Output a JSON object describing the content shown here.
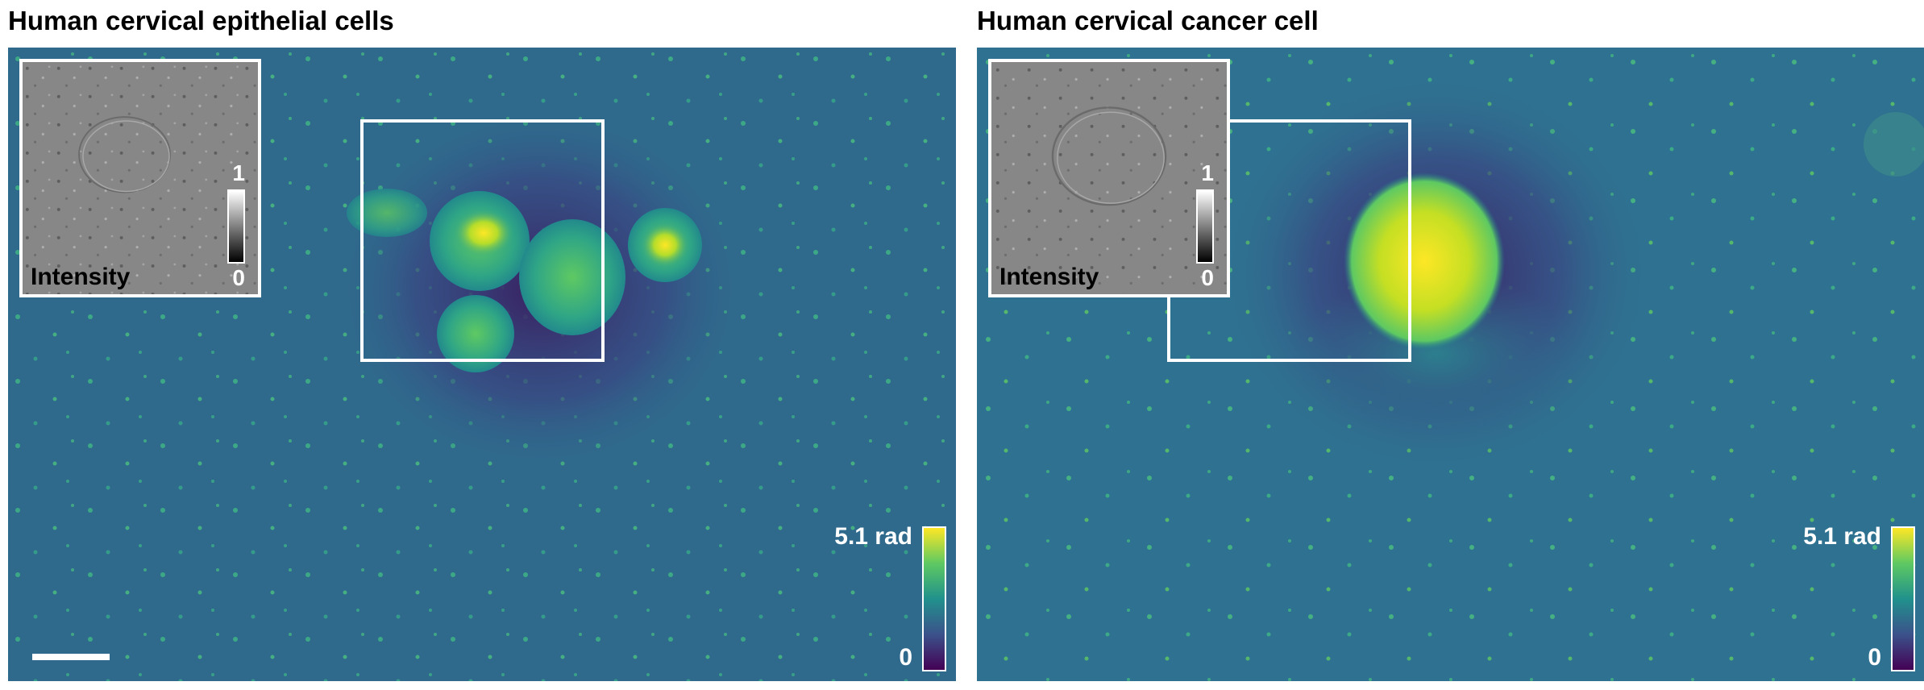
{
  "panels": [
    {
      "title": "Human cervical epithelial cells",
      "inset_label": "Intensity",
      "inset_colorbar": {
        "max_label": "1",
        "min_label": "0"
      },
      "phase_colorbar": {
        "max_label": "5.1 rad",
        "min_label": "0"
      },
      "colors": {
        "background": "#2f6a8c",
        "colormap": [
          "#440154",
          "#3b528b",
          "#21918c",
          "#5ec962",
          "#fde725"
        ]
      },
      "has_scale_bar": true
    },
    {
      "title": "Human cervical cancer cell",
      "inset_label": "Intensity",
      "inset_colorbar": {
        "max_label": "1",
        "min_label": "0"
      },
      "phase_colorbar": {
        "max_label": "5.1 rad",
        "min_label": "0"
      },
      "colors": {
        "background": "#2f6a8c",
        "colormap": [
          "#440154",
          "#3b528b",
          "#21918c",
          "#5ec962",
          "#fde725"
        ]
      },
      "has_scale_bar": false
    }
  ]
}
